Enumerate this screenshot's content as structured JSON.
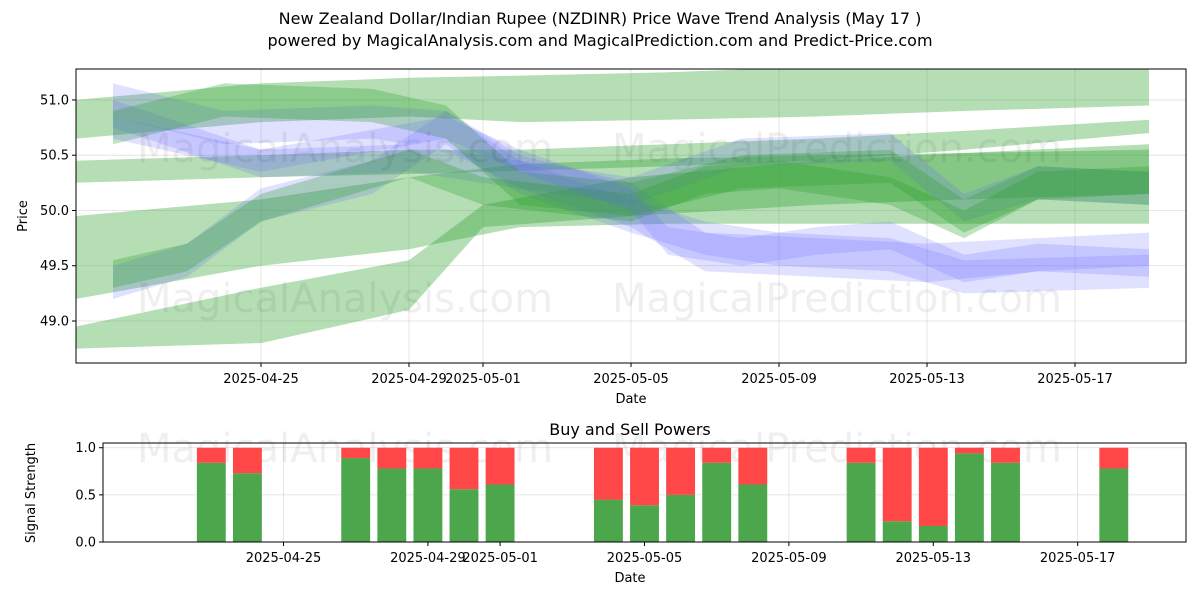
{
  "title_line1": "New Zealand Dollar/Indian Rupee (NZDINR) Price Wave Trend Analysis (May 17 )",
  "title_line2": "powered by MagicalAnalysis.com and MagicalPrediction.com and Predict-Price.com",
  "watermarks": [
    "MagicalAnalysis.com",
    "MagicalPrediction.com"
  ],
  "colors": {
    "green": "#2ca02c",
    "blue": "#6666ff",
    "buy": "#4ca64c",
    "sell": "#ff4747"
  },
  "chart_data": [
    {
      "type": "area",
      "xlabel": "Date",
      "ylabel": "Price",
      "xlim": [
        "2025-04-20",
        "2025-05-20"
      ],
      "ylim": [
        48.62,
        51.28
      ],
      "x_ticks": [
        "2025-04-25",
        "2025-04-29",
        "2025-05-01",
        "2025-05-05",
        "2025-05-09",
        "2025-05-13",
        "2025-05-17"
      ],
      "y_ticks": [
        49.0,
        49.5,
        50.0,
        50.5,
        51.0
      ],
      "grid": true,
      "bands": [
        {
          "color": "green",
          "opacity": 0.35,
          "upper": [
            [
              "2025-04-20",
              51.0
            ],
            [
              "2025-04-25",
              51.15
            ],
            [
              "2025-04-29",
              51.2
            ],
            [
              "2025-05-02",
              51.22
            ],
            [
              "2025-05-06",
              51.25
            ],
            [
              "2025-05-10",
              51.3
            ],
            [
              "2025-05-14",
              51.3
            ],
            [
              "2025-05-19",
              51.28
            ]
          ],
          "lower": [
            [
              "2025-04-20",
              50.65
            ],
            [
              "2025-04-25",
              50.8
            ],
            [
              "2025-04-29",
              50.85
            ],
            [
              "2025-05-02",
              50.8
            ],
            [
              "2025-05-06",
              50.82
            ],
            [
              "2025-05-10",
              50.85
            ],
            [
              "2025-05-14",
              50.9
            ],
            [
              "2025-05-19",
              50.95
            ]
          ]
        },
        {
          "color": "green",
          "opacity": 0.35,
          "upper": [
            [
              "2025-04-20",
              49.95
            ],
            [
              "2025-04-25",
              50.1
            ],
            [
              "2025-04-29",
              50.3
            ],
            [
              "2025-05-02",
              50.42
            ],
            [
              "2025-05-06",
              50.47
            ],
            [
              "2025-05-10",
              50.5
            ],
            [
              "2025-05-14",
              50.52
            ],
            [
              "2025-05-19",
              50.55
            ]
          ],
          "lower": [
            [
              "2025-04-20",
              49.2
            ],
            [
              "2025-04-25",
              49.5
            ],
            [
              "2025-04-29",
              49.65
            ],
            [
              "2025-05-02",
              49.85
            ],
            [
              "2025-05-06",
              49.88
            ],
            [
              "2025-05-10",
              49.88
            ],
            [
              "2025-05-14",
              49.88
            ],
            [
              "2025-05-19",
              49.88
            ]
          ]
        },
        {
          "color": "green",
          "opacity": 0.35,
          "upper": [
            [
              "2025-04-20",
              48.95
            ],
            [
              "2025-04-25",
              49.3
            ],
            [
              "2025-04-29",
              49.55
            ],
            [
              "2025-05-01",
              50.05
            ],
            [
              "2025-05-05",
              50.3
            ],
            [
              "2025-05-10",
              50.45
            ],
            [
              "2025-05-14",
              50.52
            ],
            [
              "2025-05-19",
              50.6
            ]
          ],
          "lower": [
            [
              "2025-04-20",
              48.75
            ],
            [
              "2025-04-25",
              48.8
            ],
            [
              "2025-04-29",
              49.1
            ],
            [
              "2025-05-01",
              49.85
            ],
            [
              "2025-05-05",
              49.95
            ],
            [
              "2025-05-10",
              50.05
            ],
            [
              "2025-05-14",
              50.1
            ],
            [
              "2025-05-19",
              50.15
            ]
          ]
        },
        {
          "color": "green",
          "opacity": 0.35,
          "upper": [
            [
              "2025-04-20",
              50.45
            ],
            [
              "2025-04-25",
              50.5
            ],
            [
              "2025-04-29",
              50.55
            ],
            [
              "2025-05-02",
              50.55
            ],
            [
              "2025-05-06",
              50.6
            ],
            [
              "2025-05-10",
              50.65
            ],
            [
              "2025-05-14",
              50.72
            ],
            [
              "2025-05-19",
              50.82
            ]
          ],
          "lower": [
            [
              "2025-04-20",
              50.25
            ],
            [
              "2025-04-25",
              50.3
            ],
            [
              "2025-04-29",
              50.33
            ],
            [
              "2025-05-02",
              50.36
            ],
            [
              "2025-05-06",
              50.4
            ],
            [
              "2025-05-10",
              50.45
            ],
            [
              "2025-05-14",
              50.55
            ],
            [
              "2025-05-19",
              50.7
            ]
          ]
        },
        {
          "color": "blue",
          "opacity": 0.2,
          "upper": [
            [
              "2025-04-21",
              51.15
            ],
            [
              "2025-04-24",
              50.9
            ],
            [
              "2025-04-28",
              50.95
            ],
            [
              "2025-04-30",
              50.9
            ],
            [
              "2025-05-02",
              50.5
            ],
            [
              "2025-05-05",
              50.25
            ],
            [
              "2025-05-07",
              49.8
            ],
            [
              "2025-05-10",
              49.75
            ],
            [
              "2025-05-13",
              49.7
            ],
            [
              "2025-05-16",
              49.75
            ],
            [
              "2025-05-19",
              49.8
            ]
          ],
          "lower": [
            [
              "2025-04-21",
              50.85
            ],
            [
              "2025-04-24",
              50.6
            ],
            [
              "2025-04-28",
              50.65
            ],
            [
              "2025-04-30",
              50.55
            ],
            [
              "2025-05-02",
              50.2
            ],
            [
              "2025-05-05",
              49.85
            ],
            [
              "2025-05-07",
              49.45
            ],
            [
              "2025-05-10",
              49.4
            ],
            [
              "2025-05-13",
              49.35
            ],
            [
              "2025-05-16",
              49.45
            ],
            [
              "2025-05-19",
              49.5
            ]
          ]
        },
        {
          "color": "blue",
          "opacity": 0.2,
          "upper": [
            [
              "2025-04-21",
              49.5
            ],
            [
              "2025-04-23",
              49.7
            ],
            [
              "2025-04-25",
              50.2
            ],
            [
              "2025-04-28",
              50.45
            ],
            [
              "2025-04-30",
              50.9
            ],
            [
              "2025-05-02",
              50.45
            ],
            [
              "2025-05-05",
              50.1
            ],
            [
              "2025-05-07",
              49.9
            ],
            [
              "2025-05-09",
              49.8
            ],
            [
              "2025-05-12",
              49.75
            ],
            [
              "2025-05-14",
              49.55
            ],
            [
              "2025-05-19",
              49.6
            ]
          ],
          "lower": [
            [
              "2025-04-21",
              49.2
            ],
            [
              "2025-04-23",
              49.4
            ],
            [
              "2025-04-25",
              49.9
            ],
            [
              "2025-04-28",
              50.15
            ],
            [
              "2025-04-30",
              50.6
            ],
            [
              "2025-05-02",
              50.15
            ],
            [
              "2025-05-05",
              49.8
            ],
            [
              "2025-05-07",
              49.6
            ],
            [
              "2025-05-09",
              49.5
            ],
            [
              "2025-05-12",
              49.45
            ],
            [
              "2025-05-14",
              49.25
            ],
            [
              "2025-05-19",
              49.3
            ]
          ]
        },
        {
          "color": "blue",
          "opacity": 0.2,
          "upper": [
            [
              "2025-04-21",
              51.0
            ],
            [
              "2025-04-25",
              50.55
            ],
            [
              "2025-04-29",
              50.6
            ],
            [
              "2025-05-02",
              50.45
            ],
            [
              "2025-05-05",
              50.3
            ],
            [
              "2025-05-08",
              50.65
            ],
            [
              "2025-05-12",
              50.7
            ],
            [
              "2025-05-14",
              50.15
            ],
            [
              "2025-05-16",
              50.4
            ],
            [
              "2025-05-19",
              50.35
            ]
          ],
          "lower": [
            [
              "2025-04-21",
              50.75
            ],
            [
              "2025-04-25",
              50.3
            ],
            [
              "2025-04-29",
              50.35
            ],
            [
              "2025-05-02",
              50.2
            ],
            [
              "2025-05-05",
              50.05
            ],
            [
              "2025-05-08",
              50.4
            ],
            [
              "2025-05-12",
              50.45
            ],
            [
              "2025-05-14",
              49.9
            ],
            [
              "2025-05-16",
              50.1
            ],
            [
              "2025-05-19",
              50.05
            ]
          ]
        },
        {
          "color": "green",
          "opacity": 0.3,
          "upper": [
            [
              "2025-04-21",
              50.9
            ],
            [
              "2025-04-24",
              51.15
            ],
            [
              "2025-04-28",
              51.1
            ],
            [
              "2025-04-30",
              50.95
            ],
            [
              "2025-05-02",
              50.35
            ],
            [
              "2025-05-05",
              50.25
            ],
            [
              "2025-05-08",
              50.5
            ],
            [
              "2025-05-12",
              50.55
            ],
            [
              "2025-05-14",
              50.1
            ],
            [
              "2025-05-16",
              50.4
            ],
            [
              "2025-05-19",
              50.35
            ]
          ],
          "lower": [
            [
              "2025-04-21",
              50.6
            ],
            [
              "2025-04-24",
              50.85
            ],
            [
              "2025-04-28",
              50.8
            ],
            [
              "2025-04-30",
              50.65
            ],
            [
              "2025-05-02",
              50.05
            ],
            [
              "2025-05-05",
              49.95
            ],
            [
              "2025-05-08",
              50.2
            ],
            [
              "2025-05-12",
              50.25
            ],
            [
              "2025-05-14",
              49.8
            ],
            [
              "2025-05-16",
              50.1
            ],
            [
              "2025-05-19",
              50.05
            ]
          ]
        },
        {
          "color": "green",
          "opacity": 0.3,
          "upper": [
            [
              "2025-04-21",
              49.55
            ],
            [
              "2025-04-23",
              49.7
            ],
            [
              "2025-04-25",
              50.15
            ],
            [
              "2025-04-29",
              50.55
            ],
            [
              "2025-05-01",
              50.3
            ],
            [
              "2025-05-05",
              50.15
            ],
            [
              "2025-05-07",
              50.4
            ],
            [
              "2025-05-09",
              50.45
            ],
            [
              "2025-05-12",
              50.3
            ],
            [
              "2025-05-14",
              50.0
            ],
            [
              "2025-05-16",
              50.35
            ],
            [
              "2025-05-19",
              50.4
            ]
          ],
          "lower": [
            [
              "2025-04-21",
              49.3
            ],
            [
              "2025-04-23",
              49.45
            ],
            [
              "2025-04-25",
              49.9
            ],
            [
              "2025-04-29",
              50.3
            ],
            [
              "2025-05-01",
              50.05
            ],
            [
              "2025-05-05",
              49.9
            ],
            [
              "2025-05-07",
              50.15
            ],
            [
              "2025-05-09",
              50.2
            ],
            [
              "2025-05-12",
              50.05
            ],
            [
              "2025-05-14",
              49.75
            ],
            [
              "2025-05-16",
              50.1
            ],
            [
              "2025-05-19",
              50.15
            ]
          ]
        },
        {
          "color": "blue",
          "opacity": 0.2,
          "upper": [
            [
              "2025-04-21",
              50.85
            ],
            [
              "2025-04-25",
              50.55
            ],
            [
              "2025-04-30",
              50.85
            ],
            [
              "2025-05-02",
              50.55
            ],
            [
              "2025-05-05",
              50.2
            ],
            [
              "2025-05-06",
              49.85
            ],
            [
              "2025-05-08",
              49.75
            ],
            [
              "2025-05-10",
              49.85
            ],
            [
              "2025-05-12",
              49.9
            ],
            [
              "2025-05-14",
              49.6
            ],
            [
              "2025-05-16",
              49.7
            ],
            [
              "2025-05-19",
              49.65
            ]
          ],
          "lower": [
            [
              "2025-04-21",
              50.65
            ],
            [
              "2025-04-25",
              50.35
            ],
            [
              "2025-04-30",
              50.65
            ],
            [
              "2025-05-02",
              50.35
            ],
            [
              "2025-05-05",
              50.0
            ],
            [
              "2025-05-06",
              49.6
            ],
            [
              "2025-05-08",
              49.5
            ],
            [
              "2025-05-10",
              49.6
            ],
            [
              "2025-05-12",
              49.65
            ],
            [
              "2025-05-14",
              49.35
            ],
            [
              "2025-05-16",
              49.45
            ],
            [
              "2025-05-19",
              49.4
            ]
          ]
        }
      ]
    },
    {
      "type": "bar",
      "title": "Buy and Sell Powers",
      "xlabel": "Date",
      "ylabel": "Signal Strength",
      "xlim": [
        "2025-04-20",
        "2025-05-20"
      ],
      "ylim": [
        0,
        1.05
      ],
      "x_ticks": [
        "2025-04-25",
        "2025-04-29",
        "2025-05-01",
        "2025-05-05",
        "2025-05-09",
        "2025-05-13",
        "2025-05-17"
      ],
      "y_ticks": [
        0.0,
        0.5,
        1.0
      ],
      "dates": [
        "2025-04-23",
        "2025-04-24",
        "2025-04-27",
        "2025-04-28",
        "2025-04-29",
        "2025-04-30",
        "2025-05-01",
        "2025-05-04",
        "2025-05-05",
        "2025-05-06",
        "2025-05-07",
        "2025-05-08",
        "2025-05-11",
        "2025-05-12",
        "2025-05-13",
        "2025-05-14",
        "2025-05-15",
        "2025-05-18"
      ],
      "buy": [
        0.84,
        0.73,
        0.89,
        0.78,
        0.78,
        0.56,
        0.61,
        0.45,
        0.39,
        0.5,
        0.84,
        0.61,
        0.84,
        0.22,
        0.17,
        0.94,
        0.84,
        0.78
      ],
      "sell": [
        0.16,
        0.27,
        0.11,
        0.22,
        0.22,
        0.44,
        0.39,
        0.55,
        0.61,
        0.5,
        0.16,
        0.39,
        0.16,
        0.78,
        0.83,
        0.06,
        0.16,
        0.22
      ]
    }
  ]
}
